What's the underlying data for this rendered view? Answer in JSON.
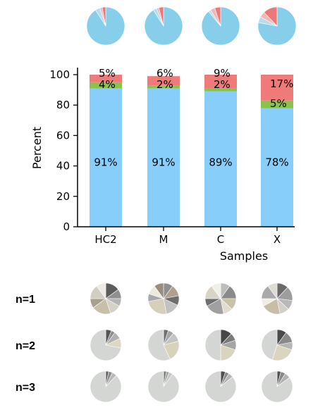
{
  "chart_data": [
    {
      "type": "pie",
      "role": "top-row",
      "categories": [
        "HC2",
        "M",
        "C",
        "X"
      ],
      "slice_colors": [
        "#87ceeb",
        "#b6dcef",
        "#f2b8b8",
        "#ec7979"
      ],
      "pies": [
        {
          "category": "HC2",
          "values": [
            91,
            4,
            2,
            3
          ]
        },
        {
          "category": "M",
          "values": [
            91,
            3,
            2,
            4
          ]
        },
        {
          "category": "C",
          "values": [
            89,
            2,
            4,
            5
          ]
        },
        {
          "category": "X",
          "values": [
            78,
            5,
            5,
            12
          ]
        }
      ]
    },
    {
      "type": "bar",
      "stacked": true,
      "categories": [
        "HC2",
        "M",
        "C",
        "X"
      ],
      "series": [
        {
          "values": [
            91,
            91,
            89,
            78
          ],
          "color": "#87cefa"
        },
        {
          "values": [
            4,
            2,
            2,
            5
          ],
          "color": "#8bc34a"
        },
        {
          "values": [
            5,
            6,
            9,
            17
          ],
          "color": "#ee7a7a"
        }
      ],
      "data_labels": {
        "bottom": [
          "91%",
          "91%",
          "89%",
          "78%"
        ],
        "middle": [
          "4%",
          "2%",
          "2%",
          "5%"
        ],
        "top": [
          "5%",
          "6%",
          "9%",
          "17%"
        ]
      },
      "xlabel": "Samples",
      "ylabel": "Percent",
      "ylim": [
        0,
        100
      ],
      "yticks": [
        0,
        20,
        40,
        60,
        80,
        100
      ],
      "grid": false,
      "legend": "none"
    },
    {
      "type": "pie",
      "role": "grid",
      "columns": [
        "HC2",
        "M",
        "C",
        "X"
      ],
      "rows": [
        {
          "label": "n=1",
          "pies": [
            {
              "values": [
                15,
                10,
                8,
                12,
                20,
                10,
                15,
                10
              ],
              "colors": [
                "#5c5c5c",
                "#8f8f8f",
                "#b5b5b5",
                "#d5d3c8",
                "#c8bfa8",
                "#a89f8e",
                "#d0cdc2",
                "#eceae2"
              ]
            },
            {
              "values": [
                10,
                12,
                10,
                15,
                25,
                8,
                10,
                10
              ],
              "colors": [
                "#8f8f8f",
                "#b0a090",
                "#6e6e6e",
                "#c2c2c2",
                "#d6cfbb",
                "#a8a8a8",
                "#ebe9e0",
                "#9a8d80"
              ]
            },
            {
              "values": [
                10,
                15,
                12,
                10,
                20,
                8,
                15,
                10
              ],
              "colors": [
                "#bdbdbd",
                "#8a8a8a",
                "#c9c1a8",
                "#e0ddd0",
                "#a0a0a0",
                "#6e6e6e",
                "#d8d4c6",
                "#f0efe8"
              ]
            },
            {
              "values": [
                12,
                15,
                10,
                10,
                20,
                8,
                15,
                10
              ],
              "colors": [
                "#6a6a6a",
                "#9d9d9d",
                "#b8b8b8",
                "#d2d0c6",
                "#c6bea6",
                "#efede6",
                "#a9a9a9",
                "#dedcd2"
              ]
            }
          ]
        },
        {
          "label": "n=2",
          "pies": [
            {
              "values": [
                6,
                4,
                8,
                10,
                72
              ],
              "colors": [
                "#555555",
                "#8c8c8c",
                "#b0b0b0",
                "#ddd8c4",
                "#d4d6d4"
              ]
            },
            {
              "values": [
                5,
                6,
                10,
                22,
                57
              ],
              "colors": [
                "#707070",
                "#a5a5a5",
                "#c4c4c4",
                "#d9d2bb",
                "#d4d6d4"
              ]
            },
            {
              "values": [
                12,
                8,
                10,
                20,
                50
              ],
              "colors": [
                "#474747",
                "#7a7a7a",
                "#a5a5a5",
                "#dad4be",
                "#d4d6d4"
              ]
            },
            {
              "values": [
                10,
                12,
                8,
                25,
                45
              ],
              "colors": [
                "#4a4a4a",
                "#8a8a8a",
                "#b5b5b5",
                "#dbd5c0",
                "#d4d6d4"
              ]
            }
          ]
        },
        {
          "label": "n=3",
          "pies": [
            {
              "values": [
                3,
                4,
                5,
                88
              ],
              "colors": [
                "#5a5a5a",
                "#8d8d8d",
                "#b8b8b8",
                "#d4d6d4"
              ]
            },
            {
              "values": [
                3,
                3,
                4,
                90
              ],
              "colors": [
                "#7a7a7a",
                "#a3a3a3",
                "#c5c5c5",
                "#d4d6d4"
              ]
            },
            {
              "values": [
                5,
                4,
                5,
                86
              ],
              "colors": [
                "#4f4f4f",
                "#8a8a8a",
                "#b4b4b4",
                "#d4d6d4"
              ]
            },
            {
              "values": [
                4,
                5,
                6,
                85
              ],
              "colors": [
                "#505050",
                "#898989",
                "#b2b2b2",
                "#d4d6d4"
              ]
            }
          ]
        }
      ]
    }
  ]
}
